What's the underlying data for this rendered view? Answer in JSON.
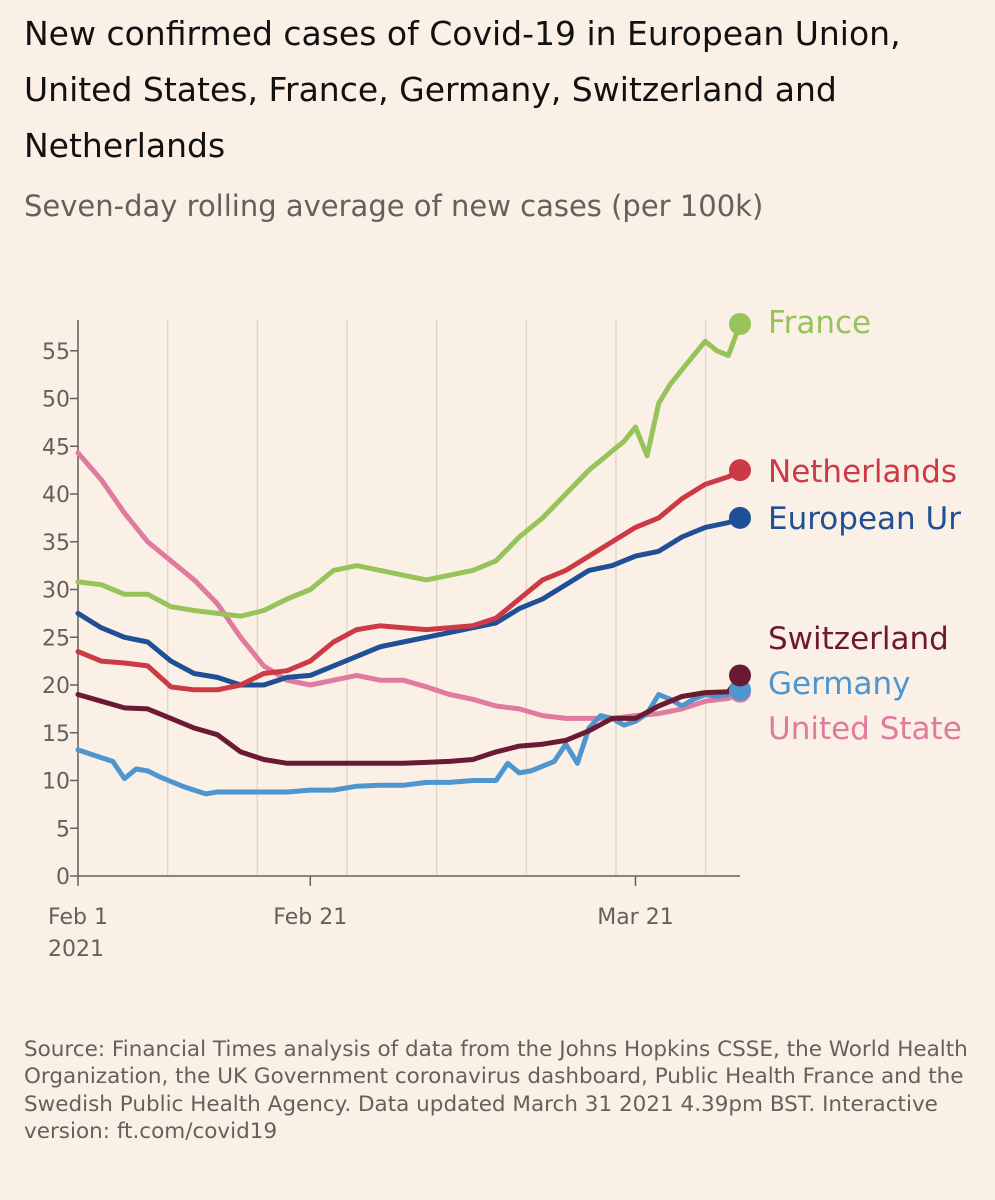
{
  "title": "New confirmed cases of Covid-19 in European Union, United States, France, Germany, Switzerland and Netherlands",
  "subtitle": "Seven-day rolling average of new cases (per 100k)",
  "source": "Source: Financial Times analysis of data from the Johns Hopkins CSSE, the World Health Organization, the UK Government coronavirus dashboard, Public Health France and the Swedish Public Health Agency. Data updated March 31 2021 4.39pm BST. Interactive version: ft.com/covid19",
  "chart_data": {
    "type": "line",
    "ylim": [
      0,
      57
    ],
    "y_ticks": [
      0,
      5,
      10,
      15,
      20,
      25,
      30,
      35,
      40,
      45,
      50,
      55
    ],
    "x_ticks": [
      {
        "x": "2021-02-01",
        "label": "Feb 1",
        "sublabel": "2021"
      },
      {
        "x": "2021-02-21",
        "label": "Feb 21",
        "sublabel": ""
      },
      {
        "x": "2021-03-21",
        "label": "Mar 21",
        "sublabel": ""
      }
    ],
    "x_range": [
      "2021-02-01",
      "2021-03-30"
    ],
    "grid": "vertical",
    "legend": "direct labels at line ends (right)",
    "series": [
      {
        "name": "United States",
        "color": "#e07a9e",
        "x": [
          "2021-02-01",
          "2021-02-03",
          "2021-02-05",
          "2021-02-07",
          "2021-02-09",
          "2021-02-11",
          "2021-02-13",
          "2021-02-15",
          "2021-02-17",
          "2021-02-19",
          "2021-02-21",
          "2021-02-23",
          "2021-02-25",
          "2021-02-27",
          "2021-03-01",
          "2021-03-03",
          "2021-03-05",
          "2021-03-07",
          "2021-03-09",
          "2021-03-11",
          "2021-03-13",
          "2021-03-15",
          "2021-03-17",
          "2021-03-19",
          "2021-03-21",
          "2021-03-23",
          "2021-03-25",
          "2021-03-27",
          "2021-03-29",
          "2021-03-30"
        ],
        "values": [
          44.3,
          41.5,
          38,
          35,
          33,
          31,
          28.5,
          25,
          22,
          20.5,
          20,
          20.5,
          21,
          20.5,
          20.5,
          19.8,
          19,
          18.5,
          17.8,
          17.5,
          16.8,
          16.5,
          16.5,
          16.5,
          16.8,
          17,
          17.5,
          18.3,
          18.6,
          19.3
        ]
      },
      {
        "name": "Germany",
        "color": "#4e96d0",
        "x": [
          "2021-02-01",
          "2021-02-02",
          "2021-02-03",
          "2021-02-04",
          "2021-02-05",
          "2021-02-06",
          "2021-02-07",
          "2021-02-08",
          "2021-02-09",
          "2021-02-10",
          "2021-02-11",
          "2021-02-12",
          "2021-02-13",
          "2021-02-14",
          "2021-02-15",
          "2021-02-17",
          "2021-02-19",
          "2021-02-21",
          "2021-02-23",
          "2021-02-25",
          "2021-02-27",
          "2021-03-01",
          "2021-03-03",
          "2021-03-05",
          "2021-03-07",
          "2021-03-09",
          "2021-03-10",
          "2021-03-11",
          "2021-03-12",
          "2021-03-13",
          "2021-03-14",
          "2021-03-15",
          "2021-03-16",
          "2021-03-17",
          "2021-03-18",
          "2021-03-19",
          "2021-03-20",
          "2021-03-21",
          "2021-03-22",
          "2021-03-23",
          "2021-03-24",
          "2021-03-25",
          "2021-03-26",
          "2021-03-27",
          "2021-03-28",
          "2021-03-29",
          "2021-03-30"
        ],
        "values": [
          13.2,
          12.8,
          12.4,
          12,
          10.2,
          11.2,
          11,
          10.4,
          9.9,
          9.4,
          9,
          8.6,
          8.8,
          8.8,
          8.8,
          8.8,
          8.8,
          9,
          9,
          9.4,
          9.5,
          9.5,
          9.8,
          9.8,
          10,
          10,
          11.8,
          10.8,
          11,
          11.5,
          12,
          13.8,
          11.8,
          15.5,
          16.8,
          16.5,
          15.8,
          16.2,
          17,
          19,
          18.5,
          17.8,
          18.5,
          19,
          18.8,
          19,
          19.5
        ]
      },
      {
        "name": "Switzerland",
        "color": "#6b1a33",
        "x": [
          "2021-02-01",
          "2021-02-03",
          "2021-02-05",
          "2021-02-07",
          "2021-02-09",
          "2021-02-11",
          "2021-02-13",
          "2021-02-15",
          "2021-02-17",
          "2021-02-19",
          "2021-02-21",
          "2021-02-23",
          "2021-02-25",
          "2021-02-27",
          "2021-03-01",
          "2021-03-03",
          "2021-03-05",
          "2021-03-07",
          "2021-03-09",
          "2021-03-11",
          "2021-03-13",
          "2021-03-15",
          "2021-03-17",
          "2021-03-19",
          "2021-03-21",
          "2021-03-23",
          "2021-03-25",
          "2021-03-27",
          "2021-03-29",
          "2021-03-30"
        ],
        "values": [
          19,
          18.3,
          17.6,
          17.5,
          16.5,
          15.5,
          14.8,
          13,
          12.2,
          11.8,
          11.8,
          11.8,
          11.8,
          11.8,
          11.8,
          11.9,
          12,
          12.2,
          13,
          13.6,
          13.8,
          14.2,
          15.2,
          16.5,
          16.5,
          17.8,
          18.8,
          19.2,
          19.3,
          21
        ]
      },
      {
        "name": "European Union",
        "color": "#1f5096",
        "x": [
          "2021-02-01",
          "2021-02-03",
          "2021-02-05",
          "2021-02-07",
          "2021-02-09",
          "2021-02-11",
          "2021-02-13",
          "2021-02-15",
          "2021-02-17",
          "2021-02-19",
          "2021-02-21",
          "2021-02-23",
          "2021-02-25",
          "2021-02-27",
          "2021-03-01",
          "2021-03-03",
          "2021-03-05",
          "2021-03-07",
          "2021-03-09",
          "2021-03-11",
          "2021-03-13",
          "2021-03-15",
          "2021-03-17",
          "2021-03-19",
          "2021-03-21",
          "2021-03-23",
          "2021-03-25",
          "2021-03-27",
          "2021-03-29",
          "2021-03-30"
        ],
        "values": [
          27.5,
          26,
          25,
          24.5,
          22.5,
          21.2,
          20.8,
          20,
          20,
          20.8,
          21,
          22,
          23,
          24,
          24.5,
          25,
          25.5,
          26,
          26.5,
          28,
          29,
          30.5,
          32,
          32.5,
          33.5,
          34,
          35.5,
          36.5,
          37,
          37.5
        ]
      },
      {
        "name": "Netherlands",
        "color": "#cc3a45",
        "x": [
          "2021-02-01",
          "2021-02-03",
          "2021-02-05",
          "2021-02-07",
          "2021-02-09",
          "2021-02-11",
          "2021-02-13",
          "2021-02-15",
          "2021-02-17",
          "2021-02-19",
          "2021-02-21",
          "2021-02-23",
          "2021-02-25",
          "2021-02-27",
          "2021-03-01",
          "2021-03-03",
          "2021-03-05",
          "2021-03-07",
          "2021-03-09",
          "2021-03-11",
          "2021-03-13",
          "2021-03-15",
          "2021-03-17",
          "2021-03-19",
          "2021-03-21",
          "2021-03-23",
          "2021-03-25",
          "2021-03-27",
          "2021-03-29",
          "2021-03-30"
        ],
        "values": [
          23.5,
          22.5,
          22.3,
          22,
          19.8,
          19.5,
          19.5,
          20,
          21.2,
          21.5,
          22.5,
          24.5,
          25.8,
          26.2,
          26,
          25.8,
          26,
          26.2,
          27,
          29,
          31,
          32,
          33.5,
          35,
          36.5,
          37.5,
          39.5,
          41,
          41.8,
          42.5
        ]
      },
      {
        "name": "France",
        "color": "#96c35a",
        "x": [
          "2021-02-01",
          "2021-02-03",
          "2021-02-05",
          "2021-02-07",
          "2021-02-09",
          "2021-02-11",
          "2021-02-13",
          "2021-02-15",
          "2021-02-17",
          "2021-02-19",
          "2021-02-21",
          "2021-02-23",
          "2021-02-25",
          "2021-02-27",
          "2021-03-01",
          "2021-03-03",
          "2021-03-05",
          "2021-03-07",
          "2021-03-09",
          "2021-03-11",
          "2021-03-13",
          "2021-03-15",
          "2021-03-17",
          "2021-03-18",
          "2021-03-19",
          "2021-03-20",
          "2021-03-21",
          "2021-03-22",
          "2021-03-23",
          "2021-03-24",
          "2021-03-25",
          "2021-03-26",
          "2021-03-27",
          "2021-03-28",
          "2021-03-29",
          "2021-03-30"
        ],
        "values": [
          30.8,
          30.5,
          29.5,
          29.5,
          28.2,
          27.8,
          27.5,
          27.2,
          27.8,
          29,
          30,
          32,
          32.5,
          32,
          31.5,
          31,
          31.5,
          32,
          33,
          35.5,
          37.5,
          40,
          42.5,
          43.5,
          44.5,
          45.5,
          47,
          44,
          49.5,
          51.5,
          53,
          54.5,
          56,
          55,
          54.5,
          57.8
        ]
      }
    ],
    "end_labels": [
      {
        "series": "France",
        "text": "France"
      },
      {
        "series": "Netherlands",
        "text": "Netherlands"
      },
      {
        "series": "European Union",
        "text": "European Ur"
      },
      {
        "series": "Switzerland",
        "text": "Switzerland"
      },
      {
        "series": "Germany",
        "text": "Germany"
      },
      {
        "series": "United States",
        "text": "United State"
      }
    ]
  }
}
